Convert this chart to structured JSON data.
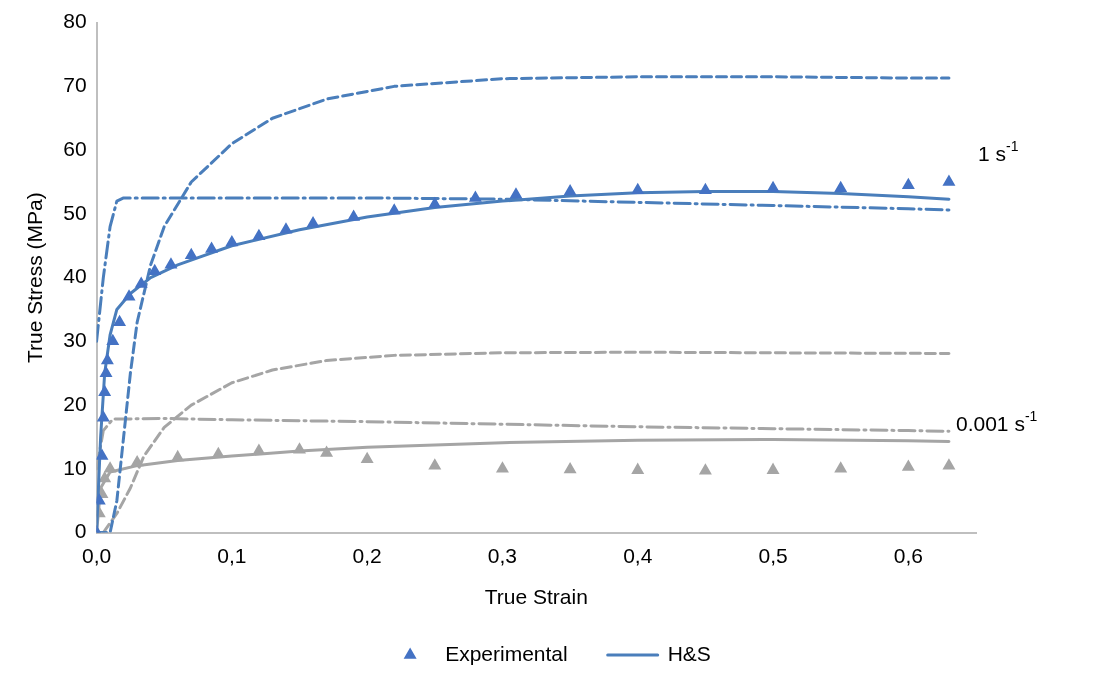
{
  "chart_data": {
    "type": "line",
    "xlabel": "True Strain",
    "ylabel": "True Stress (MPa)",
    "xlim": [
      0,
      0.65
    ],
    "xticks": [
      {
        "value": 0,
        "label": "0,0"
      },
      {
        "value": 0.1,
        "label": "0,1"
      },
      {
        "value": 0.2,
        "label": "0,2"
      },
      {
        "value": 0.3,
        "label": "0,3"
      },
      {
        "value": 0.4,
        "label": "0,4"
      },
      {
        "value": 0.5,
        "label": "0,5"
      },
      {
        "value": 0.6,
        "label": "0,6"
      }
    ],
    "ylim": [
      0,
      80
    ],
    "yticks": [
      0,
      10,
      20,
      30,
      40,
      50,
      60,
      70,
      80
    ],
    "grid": false,
    "legend": "bottom",
    "annotations": [
      "1 s$^{-1}$",
      "0.001 s$^{-1}$"
    ],
    "series": [
      {
        "name": "Experimental",
        "type": "scatter",
        "marker": "triangle",
        "color": "#4472c4",
        "x": [
          0,
          0.002,
          0.004,
          0.005,
          0.006,
          0.007,
          0.008,
          0.012,
          0.017,
          0.024,
          0.033,
          0.043,
          0.055,
          0.07,
          0.085,
          0.1,
          0.12,
          0.14,
          0.16,
          0.19,
          0.22,
          0.25,
          0.28,
          0.31,
          0.35,
          0.4,
          0.45,
          0.5,
          0.55,
          0.6,
          0.63
        ],
        "values": [
          0,
          5,
          12,
          18,
          22,
          25,
          27,
          30,
          33,
          37,
          39,
          41,
          42,
          43.5,
          44.5,
          45.5,
          46.5,
          47.5,
          48.5,
          49.5,
          50.5,
          51.5,
          52.5,
          53,
          53.5,
          53.7,
          53.7,
          54,
          54,
          54.5,
          55
        ]
      },
      {
        "name": "H&S",
        "type": "line",
        "line_style": "solid",
        "marker": "none",
        "color": "#4a7ebb",
        "x": [
          0,
          0.003,
          0.006,
          0.01,
          0.015,
          0.025,
          0.04,
          0.06,
          0.1,
          0.15,
          0.2,
          0.25,
          0.3,
          0.35,
          0.4,
          0.45,
          0.5,
          0.55,
          0.6,
          0.63
        ],
        "values": [
          0,
          15,
          25,
          31,
          35,
          37.5,
          40,
          42,
          45,
          47.5,
          49.5,
          51,
          52,
          52.8,
          53.3,
          53.5,
          53.5,
          53.2,
          52.7,
          52.3
        ]
      },
      {
        "type": "line",
        "line_style": "dashdot",
        "marker": "none",
        "color": "#4a7ebb",
        "x": [
          0,
          0.005,
          0.01,
          0.015,
          0.02,
          0.1,
          0.2,
          0.3,
          0.4,
          0.5,
          0.6,
          0.63
        ],
        "values": [
          30,
          40,
          48,
          52,
          52.5,
          52.5,
          52.5,
          52.3,
          51.8,
          51.3,
          50.8,
          50.6
        ]
      },
      {
        "type": "line",
        "line_style": "dashed",
        "marker": "none",
        "color": "#4a7ebb",
        "x": [
          0,
          0.01,
          0.015,
          0.02,
          0.025,
          0.03,
          0.04,
          0.05,
          0.07,
          0.1,
          0.13,
          0.17,
          0.22,
          0.3,
          0.4,
          0.5,
          0.6,
          0.63
        ],
        "values": [
          0,
          0,
          5,
          15,
          25,
          33,
          42,
          48,
          55,
          61,
          65,
          68,
          70,
          71.2,
          71.5,
          71.5,
          71.3,
          71.3
        ]
      },
      {
        "type": "scatter",
        "marker": "triangle",
        "color": "#a5a5a5",
        "x": [
          0,
          0.002,
          0.004,
          0.006,
          0.01,
          0.03,
          0.06,
          0.09,
          0.12,
          0.15,
          0.17,
          0.2,
          0.25,
          0.3,
          0.35,
          0.4,
          0.45,
          0.5,
          0.55,
          0.6,
          0.63
        ],
        "values": [
          0,
          3,
          6,
          8.5,
          10,
          11,
          11.8,
          12.3,
          12.8,
          13,
          12.5,
          11.5,
          10.5,
          10,
          9.9,
          9.8,
          9.7,
          9.8,
          10,
          10.3,
          10.5
        ]
      },
      {
        "type": "line",
        "line_style": "solid",
        "marker": "none",
        "color": "#a5a5a5",
        "x": [
          0,
          0.003,
          0.01,
          0.03,
          0.06,
          0.1,
          0.15,
          0.2,
          0.3,
          0.4,
          0.5,
          0.6,
          0.63
        ],
        "values": [
          0,
          7,
          9.5,
          10.5,
          11.3,
          12,
          12.8,
          13.4,
          14.1,
          14.5,
          14.6,
          14.4,
          14.3
        ]
      },
      {
        "type": "line",
        "line_style": "dashdot",
        "marker": "none",
        "color": "#a5a5a5",
        "x": [
          0,
          0.005,
          0.012,
          0.05,
          0.1,
          0.2,
          0.3,
          0.4,
          0.5,
          0.6,
          0.63
        ],
        "values": [
          10,
          16,
          17.8,
          17.9,
          17.7,
          17.4,
          17,
          16.6,
          16.3,
          16,
          15.9
        ]
      },
      {
        "type": "line",
        "line_style": "dashed",
        "marker": "none",
        "color": "#a5a5a5",
        "x": [
          0.005,
          0.015,
          0.025,
          0.035,
          0.05,
          0.07,
          0.1,
          0.13,
          0.17,
          0.22,
          0.3,
          0.4,
          0.5,
          0.63
        ],
        "values": [
          0,
          3,
          7,
          12,
          16.5,
          20,
          23.5,
          25.5,
          27,
          27.8,
          28.2,
          28.3,
          28.2,
          28.1
        ]
      }
    ]
  }
}
